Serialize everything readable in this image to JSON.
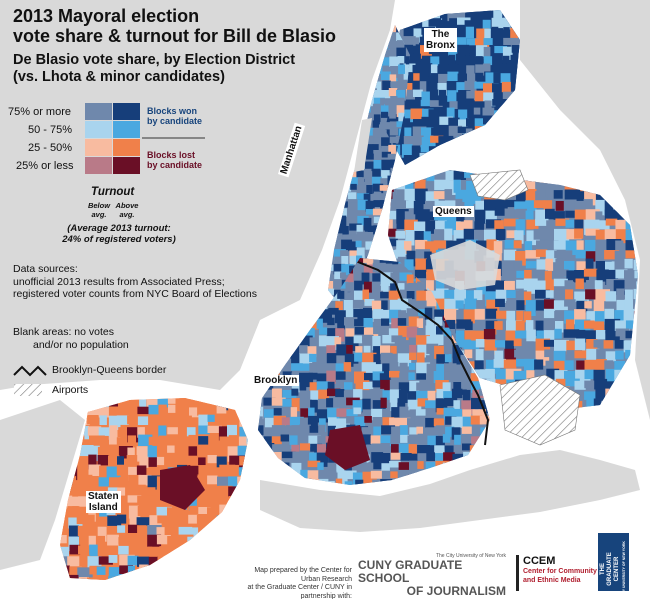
{
  "title_lines": [
    "2013 Mayoral election",
    "vote share & turnout for Bill de Blasio"
  ],
  "subtitle_lines": [
    "De Blasio vote share, by Election District",
    "(vs. Lhota & minor candidates)"
  ],
  "colors": {
    "won_75_plus_below": "#6f88ac",
    "won_75_plus_above": "#163e7a",
    "won_50_75_below": "#a9d4ee",
    "won_50_75_above": "#4aa8e0",
    "lost_25_50_below": "#f8bba0",
    "lost_25_50_above": "#f0804a",
    "lost_25_less_below": "#b97a88",
    "lost_25_less_above": "#6a0f26",
    "land_blank": "#d9d9d9",
    "water": "#ffffff",
    "won_label": "#17447c",
    "lost_label": "#6a0f26"
  },
  "legend": {
    "rows": [
      "75% or more",
      "50 - 75%",
      "25 - 50%",
      "25% or less"
    ],
    "won_label": [
      "Blocks won",
      "by candidate"
    ],
    "lost_label": [
      "Blocks lost",
      "by candidate"
    ],
    "turnout_title": "Turnout",
    "below_label": [
      "Below",
      "avg."
    ],
    "above_label": [
      "Above",
      "avg."
    ],
    "average_note": [
      "(Average 2013 turnout:",
      "24% of registered voters)"
    ],
    "data_sources": [
      "Data sources:",
      "unofficial 2013 results from Associated Press;",
      "registered voter counts from NYC Board of Elections"
    ],
    "blank_areas": [
      "Blank areas: no votes",
      "and/or no population"
    ],
    "border_label": "Brooklyn-Queens border",
    "airports_label": "Airports",
    "border_icon": "zigzag-line-icon",
    "airports_icon": "hatch-pattern-icon"
  },
  "places": {
    "bronx": [
      "The",
      "Bronx"
    ],
    "manhattan": "Manhattan",
    "queens": "Queens",
    "brooklyn": "Brooklyn",
    "staten_island": [
      "Staten",
      "Island"
    ]
  },
  "credit": [
    "Map prepared by the Center for Urban Research",
    "at the Graduate Center / CUNY in partnership with:"
  ],
  "logos": {
    "cuny": {
      "top": "The City University of New York",
      "line1": "CUNY GRADUATE SCHOOL",
      "line2": "OF JOURNALISM"
    },
    "ccem": {
      "abbr": "CCEM",
      "line1": "Center for Community",
      "line2": "and Ethnic Media"
    },
    "gc": {
      "line1": "THE",
      "line2": "GRADUATE",
      "line3": "CENTER",
      "line4": "CITY UNIVERSITY OF NEW YORK"
    }
  }
}
